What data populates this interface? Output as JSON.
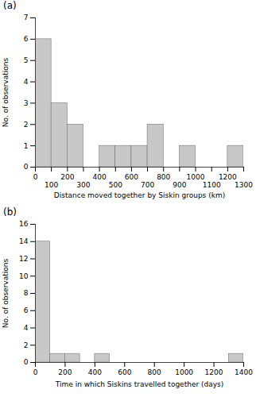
{
  "chart_data": [
    {
      "type": "histogram",
      "title": "(a)",
      "bins": [
        0,
        100,
        200,
        300,
        400,
        500,
        600,
        700,
        800,
        900,
        1000,
        1100,
        1200,
        1300
      ],
      "values": [
        6,
        3,
        2,
        0,
        1,
        1,
        1,
        2,
        0,
        1,
        0,
        0,
        1
      ],
      "x_label": "Distance moved together by Siskin groups (km)",
      "y_label": "No. of observations",
      "xlim": [
        0,
        1300
      ],
      "ylim": [
        0,
        7
      ],
      "xticks": [
        0,
        100,
        200,
        300,
        400,
        500,
        600,
        700,
        800,
        900,
        1000,
        1100,
        1200,
        1300
      ],
      "yticks": [
        0,
        1,
        2,
        3,
        4,
        5,
        6,
        7
      ],
      "color": "#c8c8c8",
      "grid": false
    },
    {
      "type": "histogram",
      "title": "(b)",
      "bins": [
        0,
        100,
        200,
        300,
        400,
        500,
        600,
        700,
        800,
        900,
        1000,
        1100,
        1200,
        1300,
        1400
      ],
      "values": [
        14,
        1,
        1,
        0,
        1,
        0,
        0,
        0,
        0,
        0,
        0,
        0,
        0,
        1
      ],
      "x_label": "Time in which Siskins travelled together (days)",
      "y_label": "No. of observations",
      "xlim": [
        0,
        1400
      ],
      "ylim": [
        0,
        16
      ],
      "xticks": [
        0,
        200,
        400,
        600,
        800,
        1000,
        1200,
        1400
      ],
      "yticks": [
        0,
        2,
        4,
        6,
        8,
        10,
        12,
        14,
        16
      ],
      "color": "#c8c8c8",
      "grid": false
    }
  ]
}
